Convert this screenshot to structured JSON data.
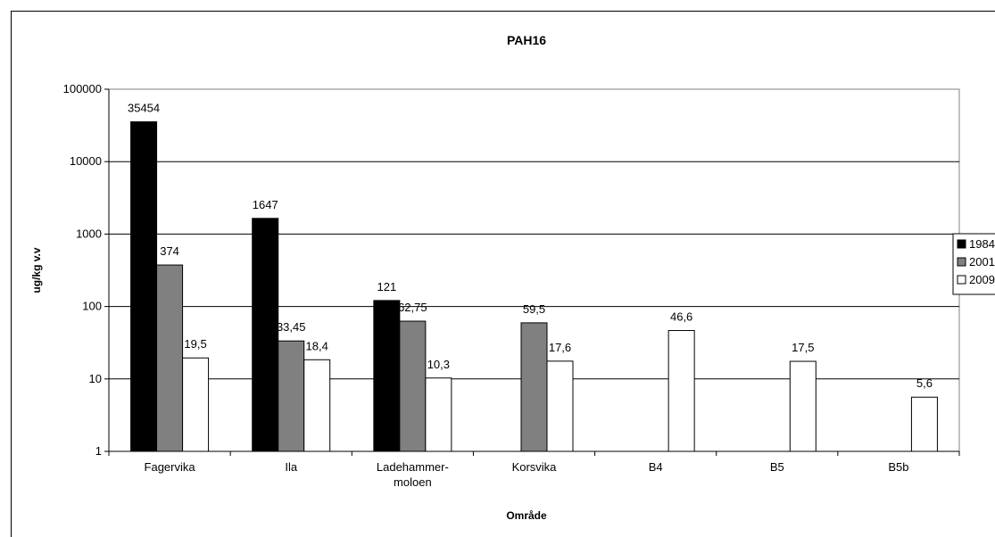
{
  "chart_data": {
    "type": "bar",
    "title": "PAH16",
    "xlabel": "Område",
    "ylabel": "ug/kg v.v",
    "yscale": "log",
    "ylim": [
      1,
      100000
    ],
    "yticks": [
      "1",
      "10",
      "100",
      "1000",
      "10000",
      "100000"
    ],
    "grid": true,
    "legend_position": "right",
    "categories": [
      [
        "Fagervika"
      ],
      [
        "Ila"
      ],
      [
        "Ladehammer-",
        "moloen"
      ],
      [
        "Korsvika"
      ],
      [
        "B4"
      ],
      [
        "B5"
      ],
      [
        "B5b"
      ]
    ],
    "series": [
      {
        "name": "1984",
        "color": "#000000",
        "values": [
          35454,
          1647,
          121,
          null,
          null,
          null,
          null
        ],
        "labels": [
          "35454",
          "1647",
          "121",
          null,
          null,
          null,
          null
        ]
      },
      {
        "name": "2001",
        "color": "#808080",
        "values": [
          374,
          33.45,
          62.75,
          59.5,
          null,
          null,
          null
        ],
        "labels": [
          "374",
          "33,45",
          "62,75",
          "59,5",
          null,
          null,
          null
        ]
      },
      {
        "name": "2009",
        "color": "#ffffff",
        "values": [
          19.5,
          18.4,
          10.3,
          17.6,
          46.6,
          17.5,
          5.6
        ],
        "labels": [
          "19,5",
          "18,4",
          "10,3",
          "17,6",
          "46,6",
          "17,5",
          "5,6"
        ]
      }
    ]
  }
}
